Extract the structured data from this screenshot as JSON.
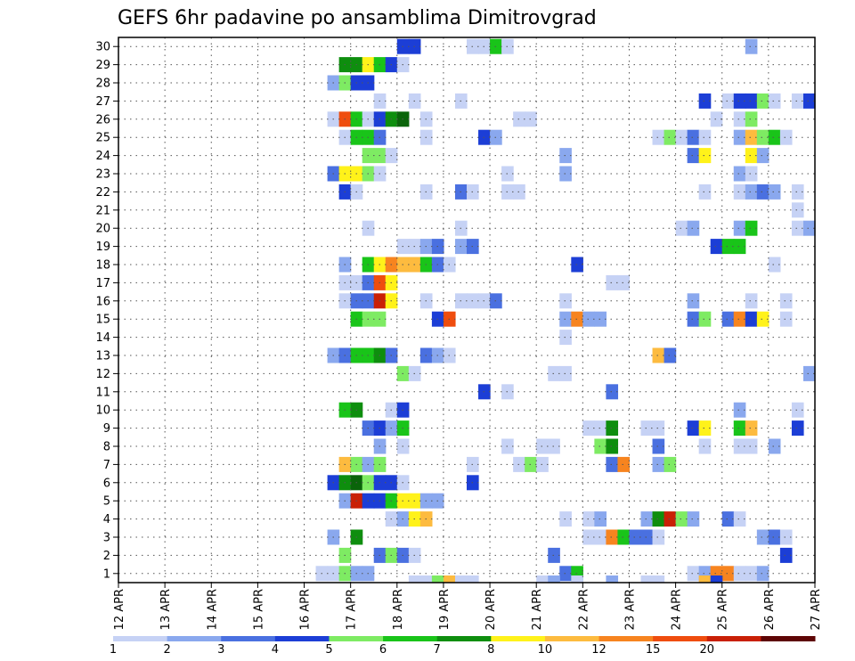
{
  "chart_data": {
    "type": "heatmap",
    "title": "GEFS 6hr padavine po ansamblima Dimitrovgrad",
    "x_tick_labels": [
      "12 APR",
      "13 APR",
      "14 APR",
      "15 APR",
      "16 APR",
      "17 APR",
      "18 APR",
      "19 APR",
      "20 APR",
      "21 APR",
      "22 APR",
      "23 APR",
      "24 APR",
      "25 APR",
      "26 APR",
      "27 APR"
    ],
    "y_members": [
      1,
      2,
      3,
      4,
      5,
      6,
      7,
      8,
      9,
      10,
      11,
      12,
      13,
      14,
      15,
      16,
      17,
      18,
      19,
      20,
      21,
      22,
      23,
      24,
      25,
      26,
      27,
      28,
      29,
      30
    ],
    "time_steps_per_day": 4,
    "xlim_days": [
      0,
      15
    ],
    "grid": true,
    "legend_position": "bottom",
    "legend_breaks": [
      "1",
      "2",
      "3",
      "4",
      "5",
      "6",
      "7",
      "8",
      "10",
      "12",
      "15",
      "20"
    ],
    "colors": [
      "#c6d2f5",
      "#8aa8ee",
      "#4a70e0",
      "#1c3ed6",
      "#7eeb63",
      "#19c419",
      "#0e8e0e",
      "#0a640a",
      "#fff21a",
      "#fdbb3f",
      "#f7841f",
      "#ef4d0e",
      "#c92006",
      "#8a0a0a",
      "#5e0505"
    ],
    "legend_colors": [
      "#c6d2f5",
      "#8aa8ee",
      "#4a70e0",
      "#1c3ed6",
      "#7eeb63",
      "#19c419",
      "#0e8e0e",
      "#fff21a",
      "#fdbb3f",
      "#f7841f",
      "#ef4d0e",
      "#c92006",
      "#5e0505"
    ],
    "series": [
      {
        "member": 1,
        "cells": [
          [
            17,
            1
          ],
          [
            18,
            1
          ],
          [
            19,
            5
          ],
          [
            20,
            2
          ],
          [
            21,
            2
          ],
          [
            38,
            3
          ],
          [
            39,
            6
          ],
          [
            49,
            1
          ],
          [
            50,
            2
          ],
          [
            51,
            11
          ],
          [
            52,
            11
          ],
          [
            53,
            1
          ],
          [
            54,
            1
          ],
          [
            55,
            2
          ]
        ]
      },
      {
        "member": 2,
        "cells": [
          [
            19,
            5
          ],
          [
            22,
            3
          ],
          [
            23,
            5
          ],
          [
            24,
            3
          ],
          [
            25,
            1
          ],
          [
            37,
            3
          ],
          [
            57,
            4
          ]
        ]
      },
      {
        "member": 3,
        "cells": [
          [
            18,
            2
          ],
          [
            20,
            7
          ],
          [
            40,
            1
          ],
          [
            41,
            1
          ],
          [
            42,
            11
          ],
          [
            43,
            6
          ],
          [
            44,
            3
          ],
          [
            45,
            3
          ],
          [
            46,
            1
          ],
          [
            55,
            2
          ],
          [
            56,
            3
          ],
          [
            57,
            1
          ]
        ]
      },
      {
        "member": 4,
        "cells": [
          [
            23,
            1
          ],
          [
            24,
            2
          ],
          [
            25,
            9
          ],
          [
            26,
            10
          ],
          [
            38,
            1
          ],
          [
            40,
            1
          ],
          [
            41,
            2
          ],
          [
            45,
            2
          ],
          [
            46,
            7
          ],
          [
            47,
            13
          ],
          [
            48,
            5
          ],
          [
            49,
            2
          ],
          [
            52,
            3
          ],
          [
            53,
            1
          ]
        ]
      },
      {
        "member": 5,
        "cells": [
          [
            19,
            2
          ],
          [
            20,
            13
          ],
          [
            21,
            4
          ],
          [
            22,
            4
          ],
          [
            23,
            6
          ],
          [
            24,
            9
          ],
          [
            25,
            9
          ],
          [
            26,
            2
          ],
          [
            27,
            2
          ]
        ]
      },
      {
        "member": 6,
        "cells": [
          [
            18,
            4
          ],
          [
            19,
            7
          ],
          [
            20,
            8
          ],
          [
            21,
            5
          ],
          [
            22,
            4
          ],
          [
            23,
            4
          ],
          [
            24,
            1
          ],
          [
            30,
            4
          ]
        ]
      },
      {
        "member": 7,
        "cells": [
          [
            19,
            10
          ],
          [
            20,
            5
          ],
          [
            21,
            2
          ],
          [
            22,
            5
          ],
          [
            30,
            1
          ],
          [
            34,
            1
          ],
          [
            35,
            5
          ],
          [
            36,
            1
          ],
          [
            42,
            3
          ],
          [
            43,
            11
          ],
          [
            46,
            2
          ],
          [
            47,
            5
          ]
        ]
      },
      {
        "member": 8,
        "cells": [
          [
            22,
            2
          ],
          [
            24,
            1
          ],
          [
            33,
            1
          ],
          [
            36,
            1
          ],
          [
            37,
            1
          ],
          [
            41,
            5
          ],
          [
            42,
            7
          ],
          [
            46,
            3
          ],
          [
            50,
            1
          ],
          [
            53,
            1
          ],
          [
            54,
            1
          ],
          [
            56,
            2
          ]
        ]
      },
      {
        "member": 9,
        "cells": [
          [
            21,
            3
          ],
          [
            22,
            4
          ],
          [
            23,
            2
          ],
          [
            24,
            6
          ],
          [
            40,
            1
          ],
          [
            41,
            1
          ],
          [
            42,
            7
          ],
          [
            45,
            1
          ],
          [
            46,
            1
          ],
          [
            49,
            4
          ],
          [
            50,
            9
          ],
          [
            53,
            6
          ],
          [
            54,
            10
          ],
          [
            58,
            4
          ]
        ]
      },
      {
        "member": 10,
        "cells": [
          [
            19,
            6
          ],
          [
            20,
            7
          ],
          [
            23,
            1
          ],
          [
            24,
            4
          ],
          [
            53,
            2
          ],
          [
            58,
            1
          ]
        ]
      },
      {
        "member": 11,
        "cells": [
          [
            31,
            4
          ],
          [
            33,
            1
          ],
          [
            42,
            3
          ]
        ]
      },
      {
        "member": 12,
        "cells": [
          [
            24,
            5
          ],
          [
            25,
            1
          ],
          [
            37,
            1
          ],
          [
            38,
            1
          ],
          [
            59,
            2
          ]
        ]
      },
      {
        "member": 13,
        "cells": [
          [
            18,
            2
          ],
          [
            19,
            3
          ],
          [
            20,
            6
          ],
          [
            21,
            6
          ],
          [
            22,
            7
          ],
          [
            23,
            3
          ],
          [
            26,
            3
          ],
          [
            27,
            2
          ],
          [
            28,
            1
          ],
          [
            46,
            10
          ],
          [
            47,
            3
          ]
        ]
      },
      {
        "member": 14,
        "cells": [
          [
            38,
            1
          ]
        ]
      },
      {
        "member": 15,
        "cells": [
          [
            20,
            6
          ],
          [
            21,
            5
          ],
          [
            22,
            5
          ],
          [
            27,
            4
          ],
          [
            28,
            12
          ],
          [
            38,
            2
          ],
          [
            39,
            11
          ],
          [
            40,
            2
          ],
          [
            41,
            2
          ],
          [
            49,
            3
          ],
          [
            50,
            5
          ],
          [
            52,
            3
          ],
          [
            53,
            11
          ],
          [
            54,
            4
          ],
          [
            55,
            9
          ],
          [
            57,
            1
          ]
        ]
      },
      {
        "member": 16,
        "cells": [
          [
            19,
            1
          ],
          [
            20,
            3
          ],
          [
            21,
            3
          ],
          [
            22,
            13
          ],
          [
            23,
            9
          ],
          [
            26,
            1
          ],
          [
            29,
            1
          ],
          [
            30,
            1
          ],
          [
            31,
            1
          ],
          [
            32,
            3
          ],
          [
            38,
            1
          ],
          [
            49,
            2
          ],
          [
            54,
            1
          ],
          [
            57,
            1
          ]
        ]
      },
      {
        "member": 17,
        "cells": [
          [
            19,
            1
          ],
          [
            20,
            1
          ],
          [
            21,
            3
          ],
          [
            22,
            12
          ],
          [
            23,
            9
          ],
          [
            42,
            1
          ],
          [
            43,
            1
          ]
        ]
      },
      {
        "member": 18,
        "cells": [
          [
            19,
            2
          ],
          [
            21,
            6
          ],
          [
            22,
            9
          ],
          [
            23,
            11
          ],
          [
            24,
            10
          ],
          [
            25,
            10
          ],
          [
            26,
            6
          ],
          [
            27,
            3
          ],
          [
            28,
            1
          ],
          [
            39,
            4
          ],
          [
            56,
            1
          ]
        ]
      },
      {
        "member": 19,
        "cells": [
          [
            24,
            1
          ],
          [
            25,
            1
          ],
          [
            26,
            2
          ],
          [
            27,
            3
          ],
          [
            29,
            2
          ],
          [
            30,
            3
          ],
          [
            51,
            4
          ],
          [
            52,
            6
          ],
          [
            53,
            6
          ]
        ]
      },
      {
        "member": 20,
        "cells": [
          [
            21,
            1
          ],
          [
            29,
            1
          ],
          [
            48,
            1
          ],
          [
            49,
            2
          ],
          [
            53,
            2
          ],
          [
            54,
            6
          ],
          [
            58,
            1
          ],
          [
            59,
            2
          ]
        ]
      },
      {
        "member": 21,
        "cells": [
          [
            58,
            1
          ]
        ]
      },
      {
        "member": 22,
        "cells": [
          [
            19,
            4
          ],
          [
            20,
            1
          ],
          [
            26,
            1
          ],
          [
            29,
            3
          ],
          [
            30,
            1
          ],
          [
            33,
            1
          ],
          [
            34,
            1
          ],
          [
            50,
            1
          ],
          [
            53,
            1
          ],
          [
            54,
            2
          ],
          [
            55,
            3
          ],
          [
            56,
            2
          ],
          [
            58,
            1
          ]
        ]
      },
      {
        "member": 23,
        "cells": [
          [
            18,
            3
          ],
          [
            19,
            9
          ],
          [
            20,
            9
          ],
          [
            21,
            5
          ],
          [
            22,
            1
          ],
          [
            33,
            1
          ],
          [
            38,
            2
          ],
          [
            53,
            2
          ],
          [
            54,
            1
          ]
        ]
      },
      {
        "member": 24,
        "cells": [
          [
            21,
            5
          ],
          [
            22,
            5
          ],
          [
            23,
            1
          ],
          [
            38,
            2
          ],
          [
            49,
            3
          ],
          [
            50,
            9
          ],
          [
            54,
            9
          ],
          [
            55,
            2
          ]
        ]
      },
      {
        "member": 25,
        "cells": [
          [
            19,
            1
          ],
          [
            20,
            6
          ],
          [
            21,
            6
          ],
          [
            22,
            3
          ],
          [
            26,
            1
          ],
          [
            31,
            4
          ],
          [
            32,
            2
          ],
          [
            46,
            1
          ],
          [
            47,
            5
          ],
          [
            48,
            1
          ],
          [
            49,
            3
          ],
          [
            50,
            1
          ],
          [
            53,
            2
          ],
          [
            54,
            10
          ],
          [
            55,
            5
          ],
          [
            56,
            6
          ],
          [
            57,
            1
          ]
        ]
      },
      {
        "member": 26,
        "cells": [
          [
            18,
            1
          ],
          [
            19,
            12
          ],
          [
            20,
            6
          ],
          [
            21,
            1
          ],
          [
            22,
            4
          ],
          [
            23,
            7
          ],
          [
            24,
            8
          ],
          [
            26,
            1
          ],
          [
            34,
            1
          ],
          [
            35,
            1
          ],
          [
            51,
            1
          ],
          [
            53,
            1
          ],
          [
            54,
            5
          ]
        ]
      },
      {
        "member": 27,
        "cells": [
          [
            22,
            1
          ],
          [
            25,
            1
          ],
          [
            29,
            1
          ],
          [
            50,
            4
          ],
          [
            52,
            1
          ],
          [
            53,
            4
          ],
          [
            54,
            4
          ],
          [
            55,
            5
          ],
          [
            56,
            1
          ],
          [
            58,
            1
          ],
          [
            59,
            4
          ]
        ]
      },
      {
        "member": 28,
        "cells": [
          [
            18,
            2
          ],
          [
            19,
            5
          ],
          [
            20,
            4
          ],
          [
            21,
            4
          ]
        ]
      },
      {
        "member": 29,
        "cells": [
          [
            19,
            7
          ],
          [
            20,
            7
          ],
          [
            21,
            9
          ],
          [
            22,
            6
          ],
          [
            23,
            4
          ],
          [
            24,
            1
          ]
        ]
      },
      {
        "member": 30,
        "cells": [
          [
            24,
            4
          ],
          [
            25,
            4
          ],
          [
            30,
            1
          ],
          [
            31,
            1
          ],
          [
            32,
            6
          ],
          [
            33,
            1
          ],
          [
            54,
            2
          ]
        ]
      }
    ],
    "bottom_row_cells": [
      [
        25,
        1
      ],
      [
        26,
        1
      ],
      [
        27,
        5
      ],
      [
        28,
        10
      ],
      [
        29,
        1
      ],
      [
        30,
        1
      ],
      [
        36,
        1
      ],
      [
        37,
        2
      ],
      [
        39,
        1
      ],
      [
        42,
        2
      ],
      [
        45,
        1
      ],
      [
        46,
        1
      ],
      [
        50,
        10
      ],
      [
        51,
        4
      ]
    ]
  }
}
